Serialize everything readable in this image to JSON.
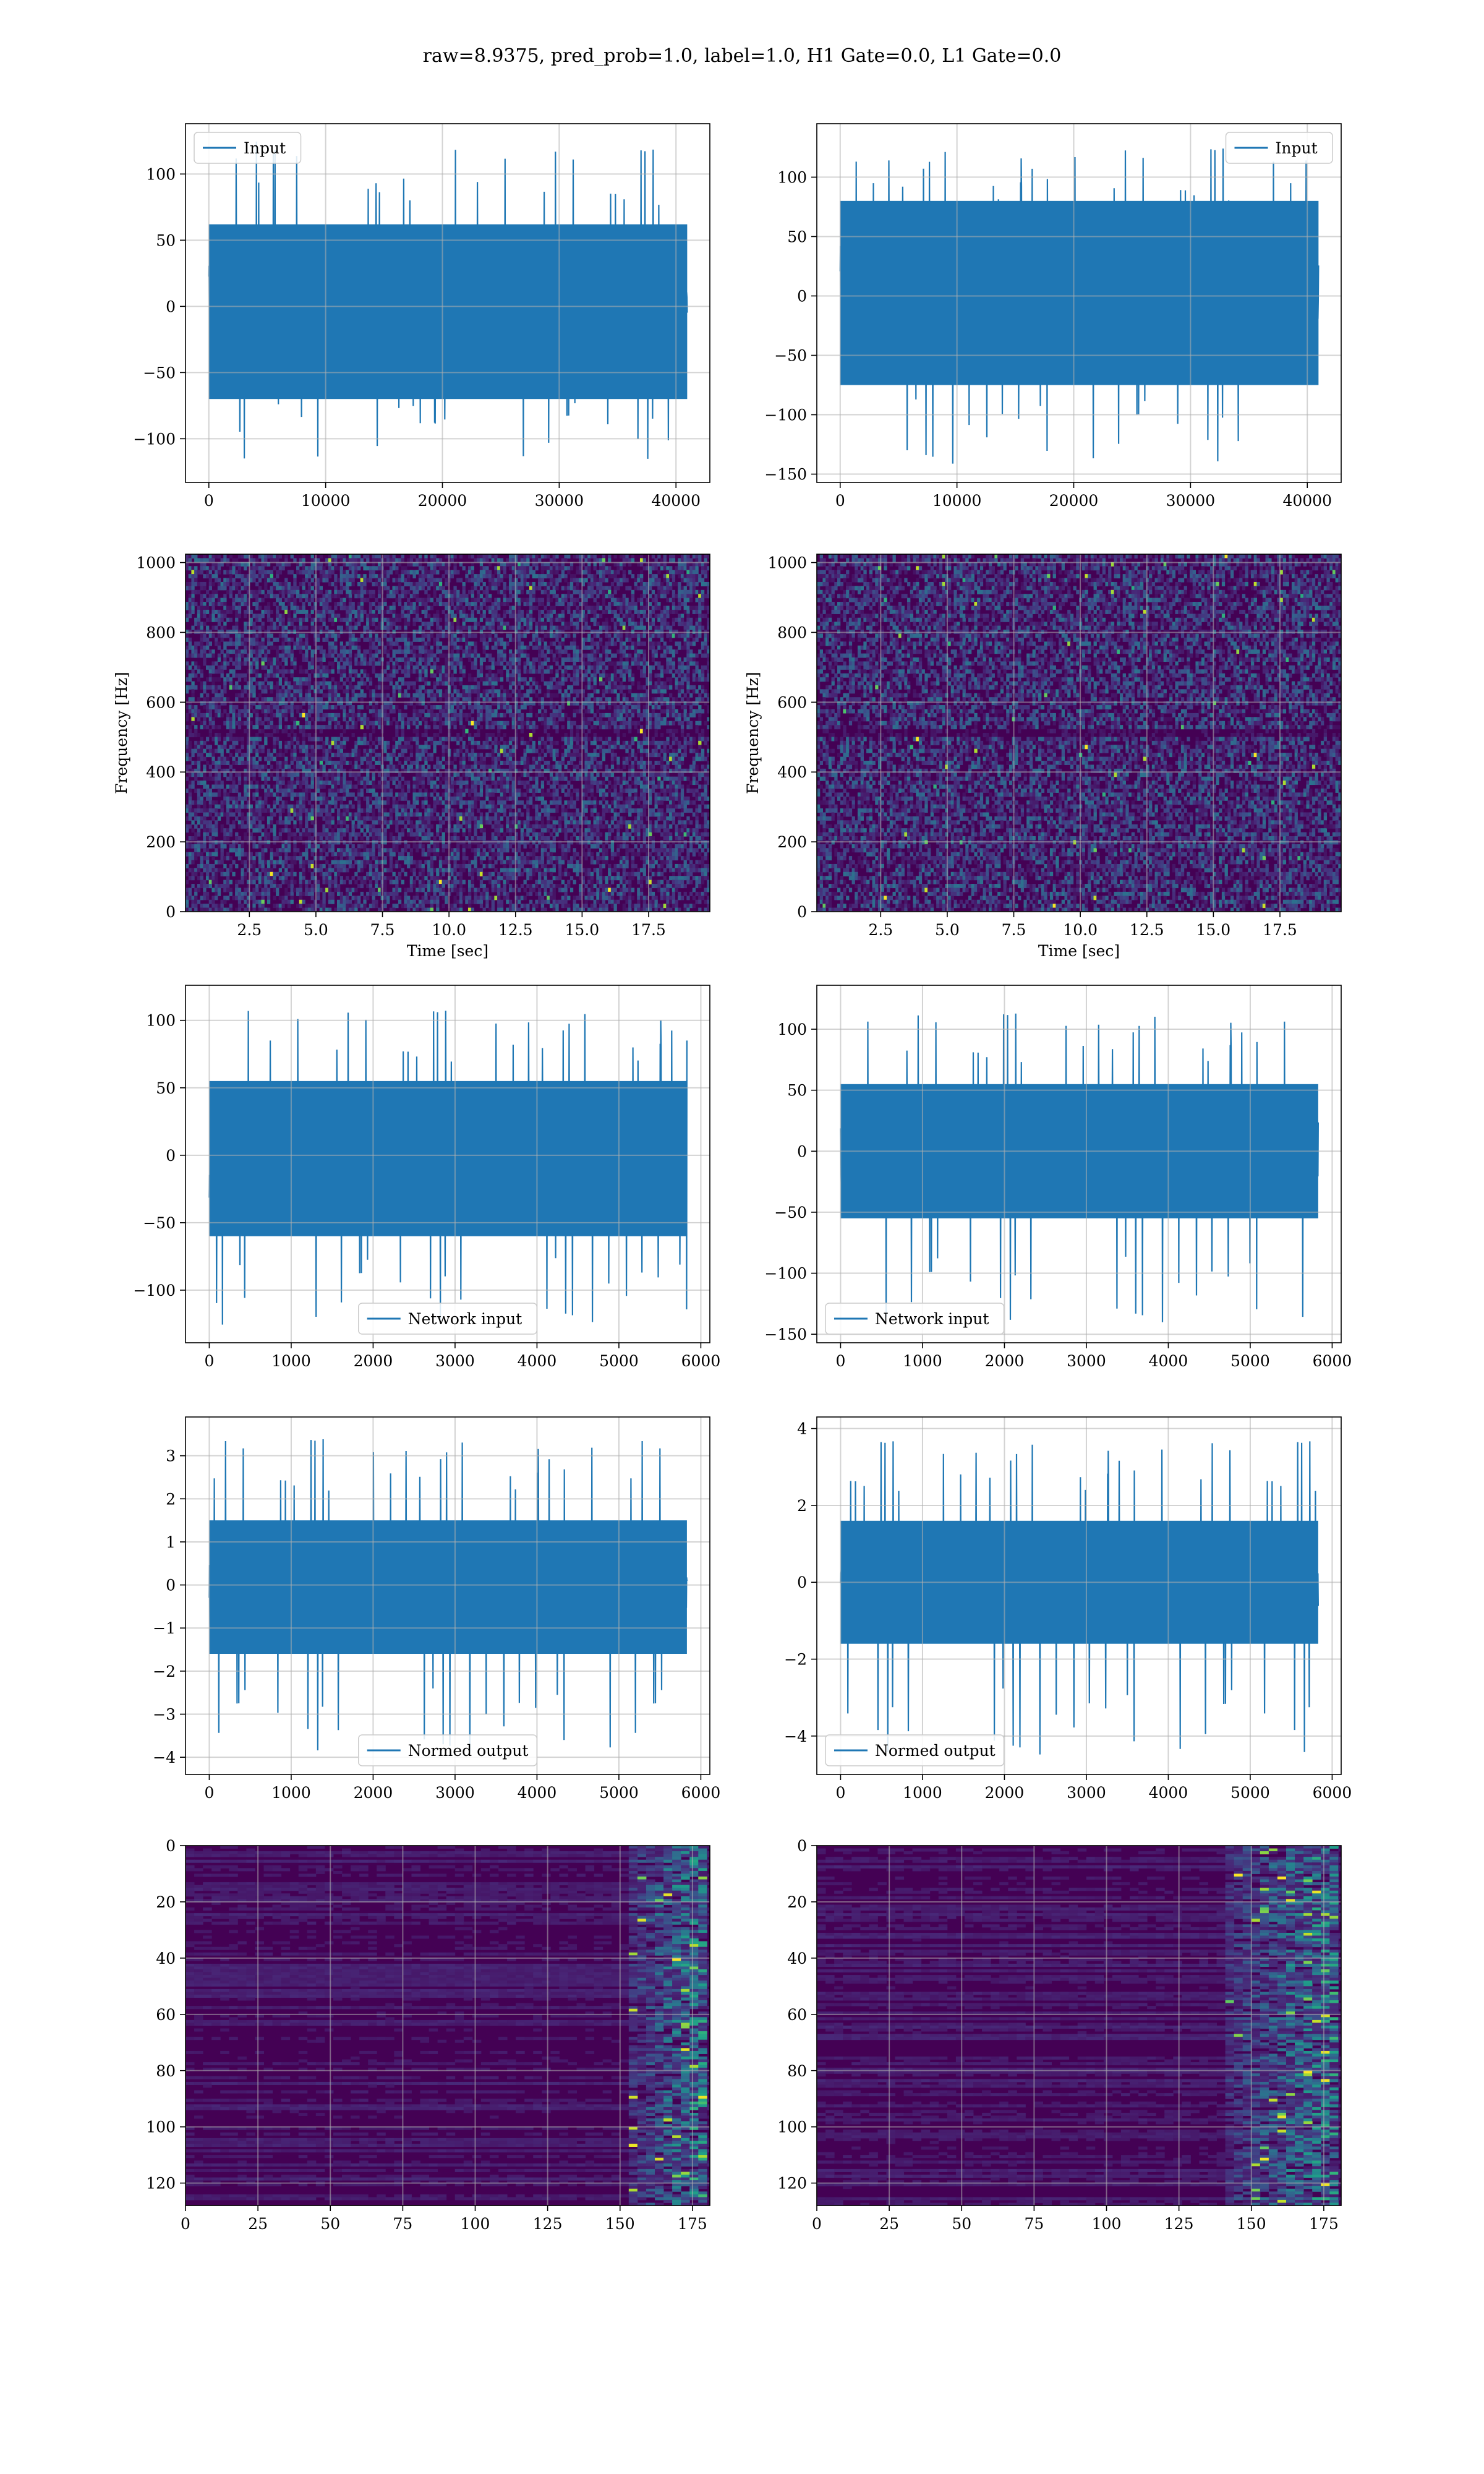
{
  "figure": {
    "title": "raw=8.9375, pred_prob=1.0, label=1.0, H1 Gate=0.0, L1 Gate=0.0"
  },
  "colors": {
    "line": "#1f77b4",
    "grid": "#b0b0b0",
    "spine": "#000000",
    "viridis_low": "#440154",
    "viridis_high": "#fde725"
  },
  "chart_data": [
    {
      "id": "input_h1",
      "type": "line",
      "xlabel": "",
      "ylabel": "",
      "legend": "Input",
      "legend_loc": "upper left",
      "xlim": [
        -2000,
        42900
      ],
      "ylim": [
        -133,
        138
      ],
      "xticks": [
        0,
        10000,
        20000,
        30000,
        40000
      ],
      "yticks": [
        -100,
        -50,
        0,
        50,
        100
      ],
      "x": [
        0,
        40960
      ],
      "envelope": [
        [
          -70,
          62
        ],
        [
          -120,
          126
        ]
      ],
      "grid": true
    },
    {
      "id": "input_l1",
      "type": "line",
      "xlabel": "",
      "ylabel": "",
      "legend": "Input",
      "legend_loc": "upper right",
      "xlim": [
        -2000,
        42900
      ],
      "ylim": [
        -157,
        145
      ],
      "xticks": [
        0,
        10000,
        20000,
        30000,
        40000
      ],
      "yticks": [
        -150,
        -100,
        -50,
        0,
        50,
        100
      ],
      "x": [
        0,
        40960
      ],
      "envelope": [
        [
          -75,
          80
        ],
        [
          -145,
          132
        ]
      ],
      "grid": true
    },
    {
      "id": "spec_h1",
      "type": "heatmap",
      "xlabel": "Time [sec]",
      "ylabel": "Frequency [Hz]",
      "xlim": [
        0.1,
        19.8
      ],
      "ylim": [
        0,
        1024
      ],
      "xticks": [
        2.5,
        5.0,
        7.5,
        10.0,
        12.5,
        15.0,
        17.5
      ],
      "yticks": [
        0,
        200,
        400,
        600,
        800,
        1000
      ],
      "grid": true
    },
    {
      "id": "spec_l1",
      "type": "heatmap",
      "xlabel": "Time [sec]",
      "ylabel": "Frequency [Hz]",
      "xlim": [
        0.1,
        19.8
      ],
      "ylim": [
        0,
        1024
      ],
      "xticks": [
        2.5,
        5.0,
        7.5,
        10.0,
        12.5,
        15.0,
        17.5
      ],
      "yticks": [
        0,
        200,
        400,
        600,
        800,
        1000
      ],
      "grid": true
    },
    {
      "id": "net_h1",
      "type": "line",
      "xlabel": "",
      "ylabel": "",
      "legend": "Network input",
      "legend_loc": "lower center",
      "xlim": [
        -290,
        6110
      ],
      "ylim": [
        -139,
        126
      ],
      "xticks": [
        0,
        1000,
        2000,
        3000,
        4000,
        5000,
        6000
      ],
      "yticks": [
        -100,
        -50,
        0,
        50,
        100
      ],
      "x": [
        0,
        5830
      ],
      "envelope": [
        [
          -60,
          55
        ],
        [
          -127,
          114
        ]
      ],
      "grid": true
    },
    {
      "id": "net_l1",
      "type": "line",
      "xlabel": "",
      "ylabel": "",
      "legend": "Network input",
      "legend_loc": "lower left",
      "xlim": [
        -290,
        6110
      ],
      "ylim": [
        -157,
        136
      ],
      "xticks": [
        0,
        1000,
        2000,
        3000,
        4000,
        5000,
        6000
      ],
      "yticks": [
        -150,
        -100,
        -50,
        0,
        50,
        100
      ],
      "x": [
        0,
        5830
      ],
      "envelope": [
        [
          -55,
          55
        ],
        [
          -144,
          120
        ]
      ],
      "grid": true
    },
    {
      "id": "norm_h1",
      "type": "line",
      "xlabel": "",
      "ylabel": "",
      "legend": "Normed output",
      "legend_loc": "lower center",
      "xlim": [
        -290,
        6110
      ],
      "ylim": [
        -4.4,
        3.9
      ],
      "xticks": [
        0,
        1000,
        2000,
        3000,
        4000,
        5000,
        6000
      ],
      "yticks": [
        -4,
        -3,
        -2,
        -1,
        0,
        1,
        2,
        3
      ],
      "x": [
        0,
        5830
      ],
      "envelope": [
        [
          -1.6,
          1.5
        ],
        [
          -4.0,
          3.6
        ]
      ],
      "grid": true
    },
    {
      "id": "norm_l1",
      "type": "line",
      "xlabel": "",
      "ylabel": "",
      "legend": "Normed output",
      "legend_loc": "lower left",
      "xlim": [
        -290,
        6110
      ],
      "ylim": [
        -5.0,
        4.3
      ],
      "xticks": [
        0,
        1000,
        2000,
        3000,
        4000,
        5000,
        6000
      ],
      "yticks": [
        -4,
        -2,
        0,
        2,
        4
      ],
      "x": [
        0,
        5830
      ],
      "envelope": [
        [
          -1.6,
          1.6
        ],
        [
          -4.6,
          3.9
        ]
      ],
      "grid": true
    },
    {
      "id": "feat_h1",
      "type": "heatmap",
      "xlabel": "",
      "ylabel": "",
      "xlim": [
        0,
        181
      ],
      "ylim": [
        128,
        0
      ],
      "xticks": [
        0,
        25,
        50,
        75,
        100,
        125,
        150,
        175
      ],
      "yticks": [
        0,
        20,
        40,
        60,
        80,
        100,
        120
      ],
      "bright_cols": [
        152,
        178
      ],
      "grid": true
    },
    {
      "id": "feat_l1",
      "type": "heatmap",
      "xlabel": "",
      "ylabel": "",
      "xlim": [
        0,
        181
      ],
      "ylim": [
        128,
        0
      ],
      "xticks": [
        0,
        25,
        50,
        75,
        100,
        125,
        150,
        175
      ],
      "yticks": [
        0,
        20,
        40,
        60,
        80,
        100,
        120
      ],
      "bright_cols": [
        140,
        178
      ],
      "grid": true
    }
  ]
}
